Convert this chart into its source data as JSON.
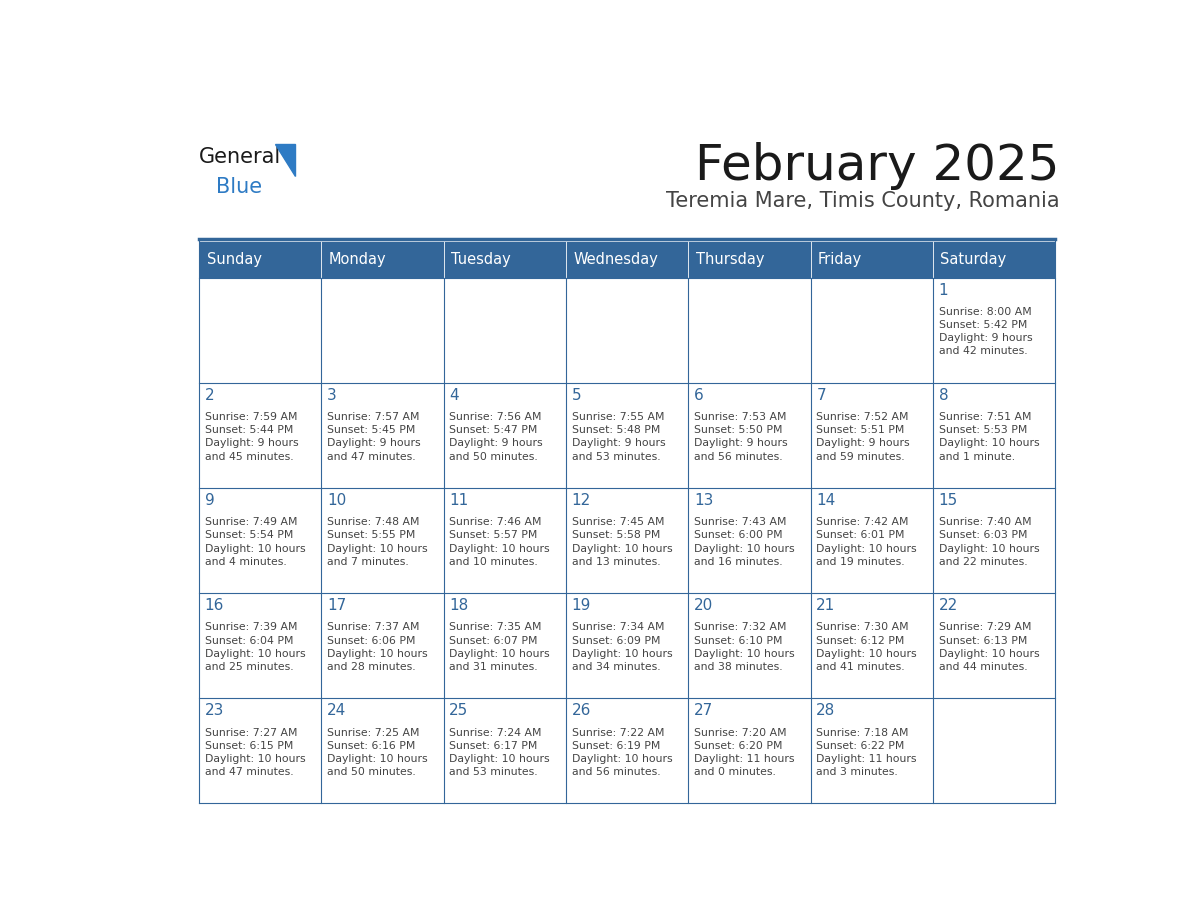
{
  "title": "February 2025",
  "subtitle": "Teremia Mare, Timis County, Romania",
  "header_bg_color": "#336699",
  "header_text_color": "#FFFFFF",
  "cell_bg_color": "#FFFFFF",
  "border_color": "#336699",
  "title_color": "#1a1a1a",
  "subtitle_color": "#444444",
  "day_number_color": "#336699",
  "cell_text_color": "#444444",
  "grid_line_color": "#336699",
  "days_of_week": [
    "Sunday",
    "Monday",
    "Tuesday",
    "Wednesday",
    "Thursday",
    "Friday",
    "Saturday"
  ],
  "weeks": [
    [
      {
        "day": null,
        "info": null
      },
      {
        "day": null,
        "info": null
      },
      {
        "day": null,
        "info": null
      },
      {
        "day": null,
        "info": null
      },
      {
        "day": null,
        "info": null
      },
      {
        "day": null,
        "info": null
      },
      {
        "day": 1,
        "info": "Sunrise: 8:00 AM\nSunset: 5:42 PM\nDaylight: 9 hours\nand 42 minutes."
      }
    ],
    [
      {
        "day": 2,
        "info": "Sunrise: 7:59 AM\nSunset: 5:44 PM\nDaylight: 9 hours\nand 45 minutes."
      },
      {
        "day": 3,
        "info": "Sunrise: 7:57 AM\nSunset: 5:45 PM\nDaylight: 9 hours\nand 47 minutes."
      },
      {
        "day": 4,
        "info": "Sunrise: 7:56 AM\nSunset: 5:47 PM\nDaylight: 9 hours\nand 50 minutes."
      },
      {
        "day": 5,
        "info": "Sunrise: 7:55 AM\nSunset: 5:48 PM\nDaylight: 9 hours\nand 53 minutes."
      },
      {
        "day": 6,
        "info": "Sunrise: 7:53 AM\nSunset: 5:50 PM\nDaylight: 9 hours\nand 56 minutes."
      },
      {
        "day": 7,
        "info": "Sunrise: 7:52 AM\nSunset: 5:51 PM\nDaylight: 9 hours\nand 59 minutes."
      },
      {
        "day": 8,
        "info": "Sunrise: 7:51 AM\nSunset: 5:53 PM\nDaylight: 10 hours\nand 1 minute."
      }
    ],
    [
      {
        "day": 9,
        "info": "Sunrise: 7:49 AM\nSunset: 5:54 PM\nDaylight: 10 hours\nand 4 minutes."
      },
      {
        "day": 10,
        "info": "Sunrise: 7:48 AM\nSunset: 5:55 PM\nDaylight: 10 hours\nand 7 minutes."
      },
      {
        "day": 11,
        "info": "Sunrise: 7:46 AM\nSunset: 5:57 PM\nDaylight: 10 hours\nand 10 minutes."
      },
      {
        "day": 12,
        "info": "Sunrise: 7:45 AM\nSunset: 5:58 PM\nDaylight: 10 hours\nand 13 minutes."
      },
      {
        "day": 13,
        "info": "Sunrise: 7:43 AM\nSunset: 6:00 PM\nDaylight: 10 hours\nand 16 minutes."
      },
      {
        "day": 14,
        "info": "Sunrise: 7:42 AM\nSunset: 6:01 PM\nDaylight: 10 hours\nand 19 minutes."
      },
      {
        "day": 15,
        "info": "Sunrise: 7:40 AM\nSunset: 6:03 PM\nDaylight: 10 hours\nand 22 minutes."
      }
    ],
    [
      {
        "day": 16,
        "info": "Sunrise: 7:39 AM\nSunset: 6:04 PM\nDaylight: 10 hours\nand 25 minutes."
      },
      {
        "day": 17,
        "info": "Sunrise: 7:37 AM\nSunset: 6:06 PM\nDaylight: 10 hours\nand 28 minutes."
      },
      {
        "day": 18,
        "info": "Sunrise: 7:35 AM\nSunset: 6:07 PM\nDaylight: 10 hours\nand 31 minutes."
      },
      {
        "day": 19,
        "info": "Sunrise: 7:34 AM\nSunset: 6:09 PM\nDaylight: 10 hours\nand 34 minutes."
      },
      {
        "day": 20,
        "info": "Sunrise: 7:32 AM\nSunset: 6:10 PM\nDaylight: 10 hours\nand 38 minutes."
      },
      {
        "day": 21,
        "info": "Sunrise: 7:30 AM\nSunset: 6:12 PM\nDaylight: 10 hours\nand 41 minutes."
      },
      {
        "day": 22,
        "info": "Sunrise: 7:29 AM\nSunset: 6:13 PM\nDaylight: 10 hours\nand 44 minutes."
      }
    ],
    [
      {
        "day": 23,
        "info": "Sunrise: 7:27 AM\nSunset: 6:15 PM\nDaylight: 10 hours\nand 47 minutes."
      },
      {
        "day": 24,
        "info": "Sunrise: 7:25 AM\nSunset: 6:16 PM\nDaylight: 10 hours\nand 50 minutes."
      },
      {
        "day": 25,
        "info": "Sunrise: 7:24 AM\nSunset: 6:17 PM\nDaylight: 10 hours\nand 53 minutes."
      },
      {
        "day": 26,
        "info": "Sunrise: 7:22 AM\nSunset: 6:19 PM\nDaylight: 10 hours\nand 56 minutes."
      },
      {
        "day": 27,
        "info": "Sunrise: 7:20 AM\nSunset: 6:20 PM\nDaylight: 11 hours\nand 0 minutes."
      },
      {
        "day": 28,
        "info": "Sunrise: 7:18 AM\nSunset: 6:22 PM\nDaylight: 11 hours\nand 3 minutes."
      },
      {
        "day": null,
        "info": null
      }
    ]
  ],
  "logo_general_color": "#1a1a1a",
  "logo_blue_color": "#2E7BC4",
  "logo_triangle_color": "#2E7BC4",
  "fig_width": 11.88,
  "fig_height": 9.18,
  "dpi": 100
}
